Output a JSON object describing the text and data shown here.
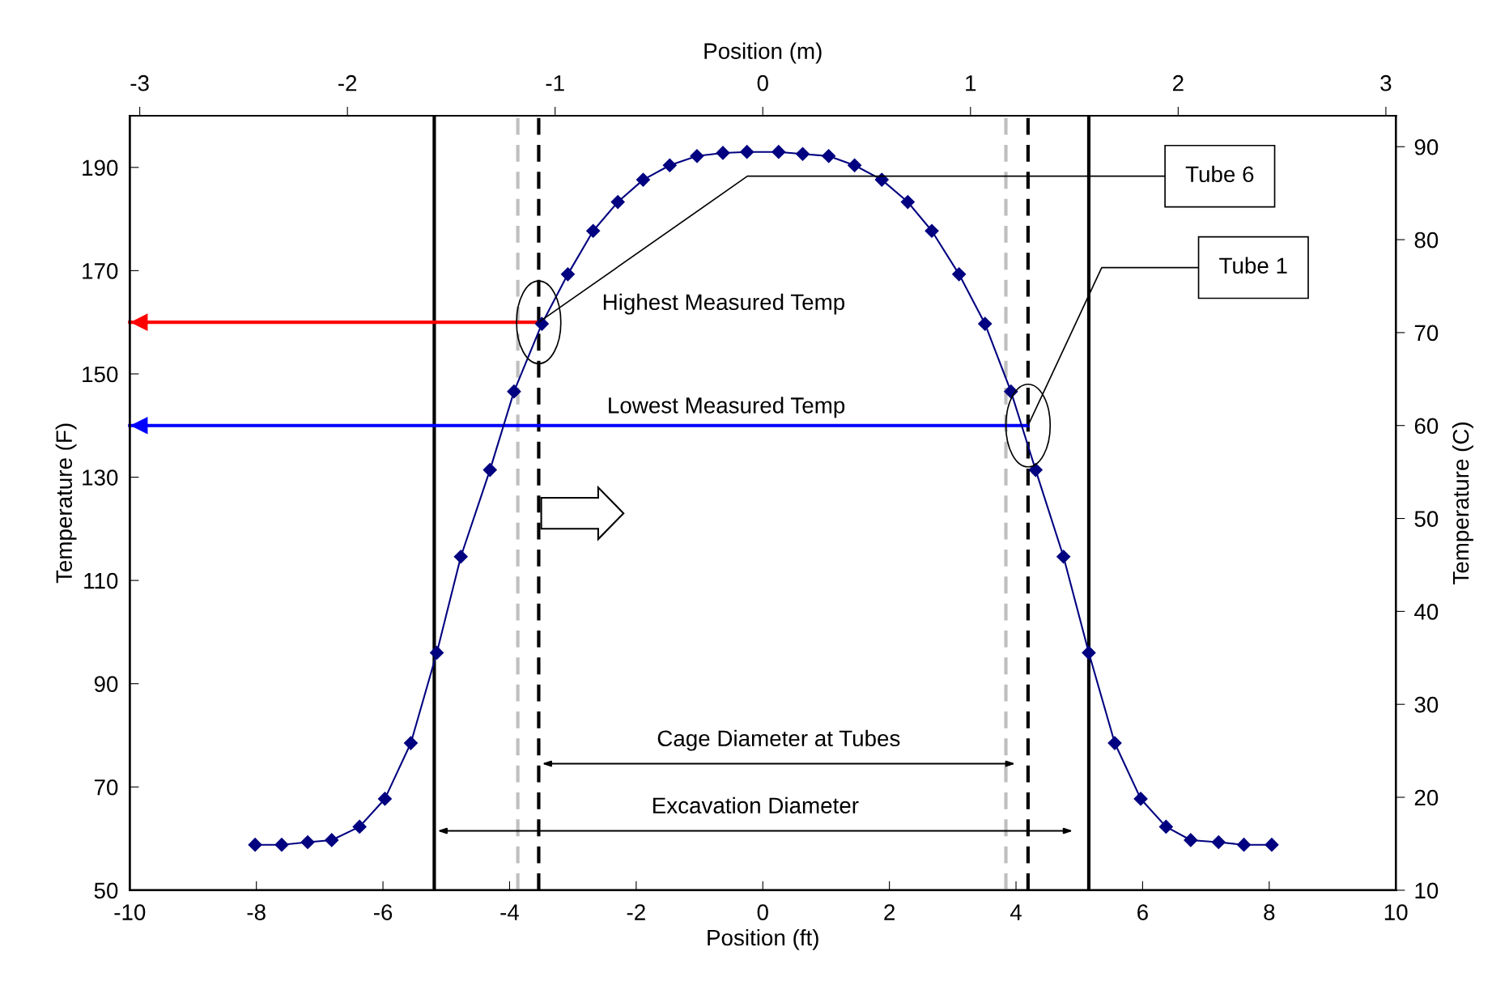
{
  "chart_data": {
    "type": "line",
    "xlabel": "Position (ft)",
    "ylabel": "Temperature (F)",
    "y2label": "Temperature (C)",
    "x2label": "Position (m)",
    "x": [
      -8.02,
      -7.6,
      -7.19,
      -6.81,
      -6.37,
      -5.97,
      -5.56,
      -5.15,
      -4.77,
      -4.31,
      -3.93,
      -3.49,
      -3.08,
      -2.68,
      -2.29,
      -1.89,
      -1.47,
      -1.04,
      -0.63,
      -0.25,
      0.25,
      0.63,
      1.04,
      1.45,
      1.88,
      2.29,
      2.67,
      3.1,
      3.51,
      3.92,
      4.31,
      4.75,
      5.15,
      5.56,
      5.97,
      6.37,
      6.76,
      7.2,
      7.6,
      8.04
    ],
    "series": [
      {
        "color": "#000080",
        "values": [
          58.8,
          58.8,
          59.3,
          59.7,
          62.3,
          67.7,
          78.5,
          96,
          114.6,
          131.4,
          146.6,
          159.7,
          169.3,
          177.7,
          183.3,
          187.6,
          190.4,
          192.2,
          192.8,
          193,
          193,
          192.6,
          192.2,
          190.4,
          187.6,
          183.3,
          177.7,
          169.3,
          159.7,
          146.6,
          131.4,
          114.6,
          96,
          78.5,
          67.7,
          62.3,
          59.7,
          59.3,
          58.8,
          58.8
        ]
      }
    ],
    "marker": "diamond",
    "line_style": "solid",
    "grid": false,
    "xlim": [
      -10,
      10
    ],
    "xticks": [
      -10,
      -8,
      -6,
      -4,
      -2,
      0,
      2,
      4,
      6,
      8,
      10
    ],
    "ylim": [
      50,
      200
    ],
    "yticks": [
      50,
      70,
      90,
      110,
      130,
      150,
      170,
      190
    ],
    "y2lim": [
      10,
      93.33
    ],
    "y2ticks": [
      10,
      20,
      30,
      40,
      50,
      60,
      70,
      80,
      90
    ],
    "x2lim": [
      -3.048,
      3.048
    ],
    "x2ticks": [
      -3,
      -2,
      -1,
      0,
      1,
      2,
      3
    ],
    "ref_lines": [
      {
        "axis": "x",
        "value": -5.19,
        "color": "#000000",
        "line_style": "solid"
      },
      {
        "axis": "x",
        "value": 5.15,
        "color": "#000000",
        "line_style": "solid"
      },
      {
        "axis": "x",
        "value": -3.54,
        "color": "#000000",
        "line_style": "dashed"
      },
      {
        "axis": "x",
        "value": 4.19,
        "color": "#000000",
        "line_style": "dashed"
      },
      {
        "axis": "x",
        "value": -3.87,
        "color": "#bfbfbf",
        "line_style": "dashed"
      },
      {
        "axis": "x",
        "value": 3.84,
        "color": "#bfbfbf",
        "line_style": "dashed"
      },
      {
        "axis": "y",
        "value": 160,
        "label": "Highest Measured Temp",
        "color": "#ff0000"
      },
      {
        "axis": "y",
        "value": 140,
        "label": "Lowest Measured Temp",
        "color": "#0000ff"
      }
    ],
    "annotations": [
      {
        "text": "Tube 6",
        "x": -3.54,
        "y": 160
      },
      {
        "text": "Tube 1",
        "x": 4.19,
        "y": 140
      },
      "Cage Diameter at Tubes",
      "Excavation Diameter"
    ]
  }
}
